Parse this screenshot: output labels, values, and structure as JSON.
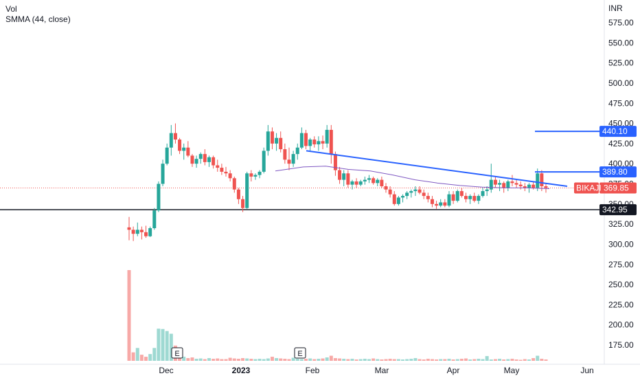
{
  "legend": {
    "line1": "Vol",
    "line2": "SMMA (44, close)"
  },
  "currency": "INR",
  "colors": {
    "up": "#26a69a",
    "down": "#ef5350",
    "trend": "#2962ff",
    "smma": "#7e57c2",
    "support": "#131722",
    "label_blue": "#2962ff",
    "label_red": "#ef5350",
    "label_black": "#131722"
  },
  "chart_data": {
    "type": "candlestick",
    "y_axis": {
      "ylim": [
        150,
        590
      ],
      "ticks": [
        "575.00",
        "550.00",
        "525.00",
        "500.00",
        "475.00",
        "450.00",
        "425.00",
        "400.00",
        "375.00",
        "350.00",
        "325.00",
        "300.00",
        "275.00",
        "250.00",
        "225.00",
        "200.00",
        "175.00"
      ]
    },
    "x_axis": {
      "ticks": [
        "Dec",
        "2023",
        "Feb",
        "Mar",
        "Apr",
        "May",
        "Jun"
      ]
    },
    "symbol": "BIKAJI",
    "last_price": "369.85",
    "horizontal_levels": [
      {
        "label": "440.10",
        "value": 440.1
      },
      {
        "label": "389.80",
        "value": 389.8
      },
      {
        "label": "342.95",
        "value": 342.95
      }
    ],
    "earnings_markers": [
      "E",
      "E"
    ],
    "series": {
      "candles": [
        [
          321,
          334,
          305,
          318
        ],
        [
          318,
          322,
          304,
          313
        ],
        [
          313,
          327,
          310,
          318
        ],
        [
          318,
          322,
          306,
          315
        ],
        [
          315,
          323,
          308,
          310
        ],
        [
          310,
          322,
          309,
          320
        ],
        [
          320,
          345,
          318,
          342
        ],
        [
          342,
          378,
          340,
          375
        ],
        [
          375,
          405,
          372,
          400
        ],
        [
          400,
          425,
          398,
          420
        ],
        [
          420,
          448,
          410,
          438
        ],
        [
          438,
          450,
          425,
          430
        ],
        [
          430,
          432,
          412,
          416
        ],
        [
          416,
          425,
          405,
          420
        ],
        [
          420,
          428,
          408,
          410
        ],
        [
          410,
          412,
          396,
          400
        ],
        [
          400,
          410,
          395,
          406
        ],
        [
          406,
          414,
          400,
          412
        ],
        [
          412,
          418,
          398,
          402
        ],
        [
          402,
          410,
          396,
          408
        ],
        [
          408,
          410,
          394,
          398
        ],
        [
          398,
          405,
          390,
          395
        ],
        [
          395,
          400,
          386,
          390
        ],
        [
          390,
          396,
          384,
          388
        ],
        [
          388,
          392,
          378,
          382
        ],
        [
          382,
          384,
          364,
          368
        ],
        [
          368,
          370,
          350,
          356
        ],
        [
          356,
          360,
          340,
          345
        ],
        [
          345,
          390,
          344,
          388
        ],
        [
          388,
          392,
          378,
          384
        ],
        [
          384,
          388,
          380,
          386
        ],
        [
          386,
          392,
          382,
          390
        ],
        [
          390,
          420,
          388,
          416
        ],
        [
          416,
          448,
          410,
          440
        ],
        [
          440,
          445,
          418,
          425
        ],
        [
          425,
          438,
          416,
          432
        ],
        [
          432,
          440,
          414,
          418
        ],
        [
          418,
          425,
          400,
          405
        ],
        [
          405,
          420,
          392,
          400
        ],
        [
          400,
          416,
          396,
          412
        ],
        [
          412,
          425,
          405,
          420
        ],
        [
          420,
          445,
          418,
          438
        ],
        [
          438,
          442,
          418,
          422
        ],
        [
          422,
          432,
          415,
          430
        ],
        [
          430,
          434,
          420,
          424
        ],
        [
          424,
          434,
          416,
          428
        ],
        [
          428,
          435,
          418,
          425
        ],
        [
          425,
          448,
          420,
          442
        ],
        [
          442,
          448,
          400,
          412
        ],
        [
          412,
          415,
          385,
          392
        ],
        [
          392,
          396,
          375,
          380
        ],
        [
          380,
          392,
          372,
          388
        ],
        [
          388,
          392,
          370,
          374
        ],
        [
          374,
          380,
          368,
          378
        ],
        [
          378,
          382,
          370,
          374
        ],
        [
          374,
          380,
          372,
          378
        ],
        [
          378,
          384,
          374,
          380
        ],
        [
          380,
          386,
          376,
          382
        ],
        [
          382,
          384,
          374,
          376
        ],
        [
          376,
          382,
          372,
          380
        ],
        [
          380,
          384,
          370,
          372
        ],
        [
          372,
          376,
          364,
          368
        ],
        [
          368,
          372,
          358,
          362
        ],
        [
          362,
          366,
          348,
          350
        ],
        [
          350,
          360,
          348,
          358
        ],
        [
          358,
          362,
          352,
          360
        ],
        [
          360,
          366,
          356,
          364
        ],
        [
          364,
          368,
          358,
          366
        ],
        [
          366,
          372,
          360,
          368
        ],
        [
          368,
          372,
          362,
          364
        ],
        [
          364,
          368,
          356,
          360
        ],
        [
          360,
          364,
          352,
          356
        ],
        [
          356,
          360,
          346,
          350
        ],
        [
          350,
          354,
          344,
          348
        ],
        [
          348,
          356,
          346,
          352
        ],
        [
          352,
          356,
          346,
          348
        ],
        [
          348,
          366,
          346,
          362
        ],
        [
          362,
          366,
          350,
          354
        ],
        [
          354,
          368,
          352,
          366
        ],
        [
          366,
          370,
          358,
          360
        ],
        [
          360,
          364,
          352,
          356
        ],
        [
          356,
          362,
          350,
          360
        ],
        [
          360,
          364,
          352,
          354
        ],
        [
          354,
          362,
          350,
          360
        ],
        [
          360,
          370,
          358,
          366
        ],
        [
          366,
          372,
          360,
          368
        ],
        [
          368,
          400,
          364,
          380
        ],
        [
          380,
          384,
          370,
          374
        ],
        [
          374,
          380,
          366,
          376
        ],
        [
          376,
          378,
          364,
          370
        ],
        [
          370,
          380,
          366,
          378
        ],
        [
          378,
          386,
          372,
          376
        ],
        [
          376,
          380,
          370,
          374
        ],
        [
          374,
          378,
          368,
          372
        ],
        [
          372,
          376,
          366,
          370
        ],
        [
          370,
          376,
          364,
          374
        ],
        [
          374,
          378,
          368,
          370
        ],
        [
          370,
          394,
          366,
          388
        ],
        [
          388,
          392,
          366,
          372
        ],
        [
          372,
          376,
          364,
          370
        ]
      ],
      "volumes": [
        268,
        25,
        38,
        18,
        12,
        20,
        38,
        95,
        94,
        88,
        80,
        45,
        25,
        12,
        8,
        10,
        6,
        7,
        5,
        8,
        6,
        7,
        5,
        5,
        9,
        7,
        6,
        8,
        7,
        6,
        5,
        6,
        5,
        7,
        12,
        8,
        7,
        6,
        5,
        9,
        6,
        5,
        6,
        7,
        5,
        6,
        7,
        10,
        15,
        8,
        7,
        6,
        5,
        6,
        4,
        5,
        6,
        5,
        7,
        5,
        4,
        5,
        6,
        5,
        5,
        4,
        5,
        6,
        8,
        5,
        4,
        6,
        5,
        4,
        5,
        5,
        6,
        4,
        5,
        6,
        7,
        4,
        5,
        6,
        5,
        14,
        4,
        5,
        6,
        4,
        5,
        6,
        4,
        3,
        5,
        4,
        8,
        15,
        6,
        4
      ],
      "smma": [
        [
          0.47,
          391
        ],
        [
          0.52,
          396
        ],
        [
          0.56,
          397
        ],
        [
          0.6,
          393
        ],
        [
          0.64,
          391
        ],
        [
          0.68,
          386
        ],
        [
          0.72,
          380
        ],
        [
          0.76,
          376
        ],
        [
          0.8,
          373
        ],
        [
          0.84,
          371
        ],
        [
          0.88,
          370
        ],
        [
          0.92,
          370
        ],
        [
          0.96,
          369
        ]
      ],
      "trendline": [
        [
          0.0,
          416
        ],
        [
          1.0,
          372
        ]
      ]
    }
  }
}
